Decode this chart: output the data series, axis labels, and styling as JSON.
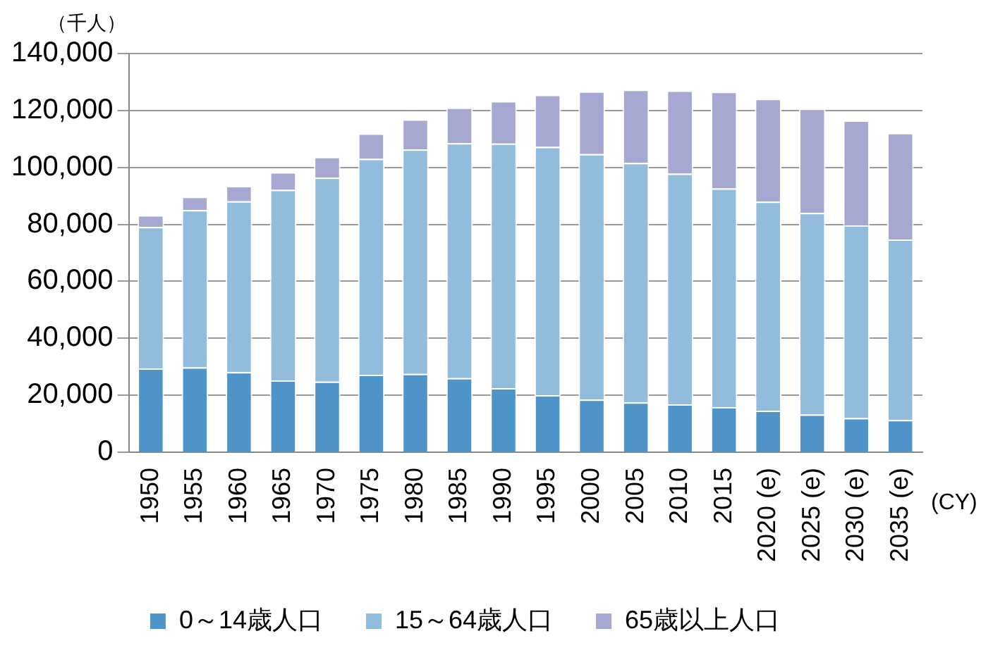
{
  "chart_data": {
    "type": "bar",
    "stacked": true,
    "ylabel": "（千人）",
    "xlabel": "(CY)",
    "categories": [
      "1950",
      "1955",
      "1960",
      "1965",
      "1970",
      "1975",
      "1980",
      "1985",
      "1990",
      "1995",
      "2000",
      "2005",
      "2010",
      "2015",
      "2020 (e)",
      "2025 (e)",
      "2030 (e)",
      "2035 (e)"
    ],
    "series": [
      {
        "name": "0～14歳人口",
        "color": "#4f94c8",
        "values": [
          29400,
          29800,
          28100,
          25200,
          24800,
          27200,
          27500,
          26000,
          22500,
          20000,
          18500,
          17500,
          16800,
          15800,
          14600,
          13200,
          12000,
          11300
        ]
      },
      {
        "name": "15～64歳人口",
        "color": "#92bcdc",
        "values": [
          49700,
          55200,
          60000,
          66900,
          71600,
          75800,
          78800,
          82500,
          85900,
          87200,
          86200,
          84100,
          81000,
          76800,
          73400,
          70800,
          67700,
          63400
        ]
      },
      {
        "name": "65歳以上人口",
        "color": "#a6a8d2",
        "values": [
          4100,
          4700,
          5400,
          6200,
          7300,
          8900,
          10600,
          12500,
          14900,
          18300,
          22000,
          25700,
          29200,
          34000,
          36100,
          36600,
          36800,
          37400
        ]
      }
    ],
    "ylim": [
      0,
      140000
    ],
    "yticks": [
      0,
      {
        "value": 20000,
        "label": "20,000"
      },
      {
        "value": 40000,
        "label": "40,000"
      },
      {
        "value": 60000,
        "label": "60,000"
      },
      {
        "value": 80000,
        "label": "80,000"
      },
      {
        "value": 100000,
        "label": "100,000"
      },
      {
        "value": 120000,
        "label": "120,000"
      },
      {
        "value": 140000,
        "label": "140,000"
      }
    ],
    "grid": "y",
    "legend": "bottom"
  }
}
